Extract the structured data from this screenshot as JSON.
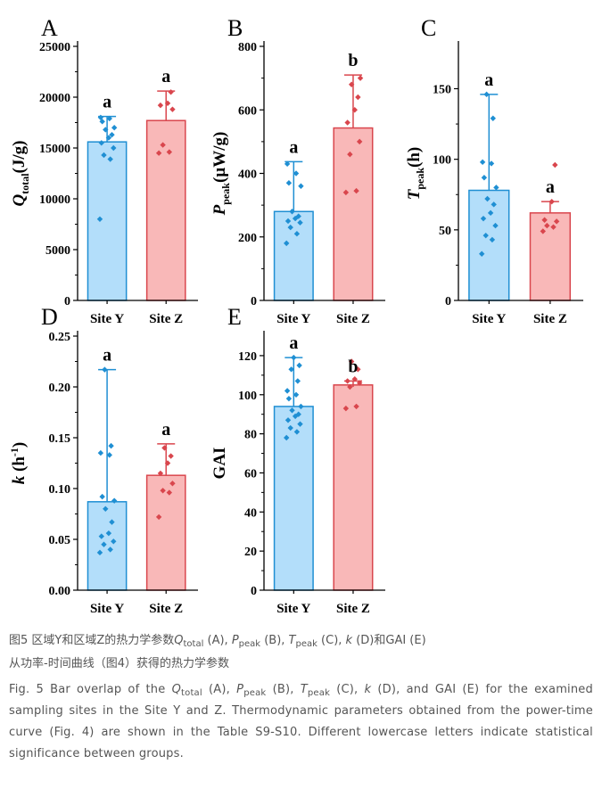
{
  "colors": {
    "site_y_fill": "#b3defa",
    "site_y_stroke": "#1f8fd3",
    "site_z_fill": "#f9b8b8",
    "site_z_stroke": "#d9464d"
  },
  "chart_data": [
    {
      "panel": "A",
      "type": "bar",
      "ylabel": "Q_total (J/g)",
      "ylabel_main": "Q",
      "ylabel_sub": "total",
      "ylabel_unit": "(J/g)",
      "categories": [
        "Site Y",
        "Site Z"
      ],
      "ylim": [
        0,
        25000
      ],
      "yticks": [
        0,
        5000,
        10000,
        15000,
        20000,
        25000
      ],
      "ytick_labels": [
        "0",
        "5000",
        "10000",
        "15000",
        "20000",
        "25000"
      ],
      "values": [
        15600,
        17700
      ],
      "err_high": [
        18100,
        20600
      ],
      "err_low": [
        15600,
        17700
      ],
      "letters": [
        "a",
        "a"
      ],
      "points": [
        [
          8000,
          13900,
          14300,
          15000,
          15500,
          16000,
          16300,
          16800,
          17000,
          17600,
          17900,
          18000
        ],
        [
          14500,
          14600,
          15300,
          18800,
          19200,
          19400,
          20500
        ]
      ]
    },
    {
      "panel": "B",
      "type": "bar",
      "ylabel": "P_peak (µW/g)",
      "ylabel_main": "P",
      "ylabel_sub": "peak",
      "ylabel_unit": "(µW/g)",
      "categories": [
        "Site Y",
        "Site Z"
      ],
      "ylim": [
        0,
        800
      ],
      "yticks": [
        0,
        200,
        400,
        600,
        800
      ],
      "ytick_labels": [
        "0",
        "200",
        "400",
        "600",
        "800"
      ],
      "values": [
        280,
        543
      ],
      "err_high": [
        437,
        710
      ],
      "err_low": [
        280,
        543
      ],
      "letters": [
        "a",
        "b"
      ],
      "points": [
        [
          180,
          210,
          230,
          245,
          250,
          258,
          265,
          280,
          360,
          370,
          400,
          430
        ],
        [
          340,
          345,
          460,
          500,
          560,
          600,
          640,
          680,
          700
        ]
      ]
    },
    {
      "panel": "C",
      "type": "bar",
      "ylabel": "T_peak (h)",
      "ylabel_main": "T",
      "ylabel_sub": "peak",
      "ylabel_unit": "(h)",
      "categories": [
        "Site Y",
        "Site Z"
      ],
      "ylim": [
        0,
        180
      ],
      "yticks": [
        0,
        50,
        100,
        150
      ],
      "ytick_labels": [
        "0",
        "50",
        "100",
        "150"
      ],
      "values": [
        78,
        62
      ],
      "err_high": [
        146,
        70
      ],
      "err_low": [
        78,
        62
      ],
      "letters": [
        "a",
        "a"
      ],
      "points": [
        [
          33,
          43,
          46,
          53,
          58,
          62,
          68,
          72,
          80,
          87,
          97,
          98,
          129,
          146
        ],
        [
          49,
          52,
          53,
          56,
          57,
          70,
          96
        ]
      ]
    },
    {
      "panel": "D",
      "type": "bar",
      "ylabel": "k (h-1)",
      "ylabel_main": "k",
      "ylabel_sub": "",
      "ylabel_sup": "-1",
      "ylabel_unit": "(h",
      "categories": [
        "Site Y",
        "Site Z"
      ],
      "ylim": [
        0,
        0.25
      ],
      "yticks": [
        0,
        0.05,
        0.1,
        0.15,
        0.2,
        0.25
      ],
      "ytick_labels": [
        "0.00",
        "0.05",
        "0.10",
        "0.15",
        "0.20",
        "0.25"
      ],
      "values": [
        0.087,
        0.113
      ],
      "err_high": [
        0.217,
        0.144
      ],
      "err_low": [
        0.087,
        0.113
      ],
      "letters": [
        "a",
        "a"
      ],
      "points": [
        [
          0.037,
          0.04,
          0.045,
          0.048,
          0.053,
          0.056,
          0.067,
          0.08,
          0.088,
          0.092,
          0.133,
          0.135,
          0.142,
          0.217
        ],
        [
          0.072,
          0.096,
          0.098,
          0.105,
          0.115,
          0.125,
          0.132,
          0.14
        ]
      ]
    },
    {
      "panel": "E",
      "type": "bar",
      "ylabel": "GAI",
      "ylabel_main": "GAI",
      "ylabel_sub": "",
      "ylabel_unit": "",
      "categories": [
        "Site Y",
        "Site Z"
      ],
      "ylim": [
        0,
        130
      ],
      "yticks": [
        0,
        20,
        40,
        60,
        80,
        100,
        120
      ],
      "ytick_labels": [
        "0",
        "20",
        "40",
        "60",
        "80",
        "100",
        "120"
      ],
      "values": [
        94,
        105
      ],
      "err_high": [
        119,
        107
      ],
      "err_low": [
        94,
        104
      ],
      "letters": [
        "a",
        "b"
      ],
      "points": [
        [
          78,
          81,
          83,
          85,
          87,
          89,
          90,
          92,
          94,
          98,
          100,
          102,
          107,
          113,
          115,
          119
        ],
        [
          93,
          94,
          104,
          106,
          107,
          108,
          113,
          117
        ]
      ]
    }
  ],
  "caption": {
    "cn_line1_pre": "图5 区域Y和区域Z的热力学参数",
    "q": "Q",
    "q_sub": "total",
    "p": "P",
    "p_sub": "peak",
    "t": "T",
    "t_sub": "peak",
    "k": "k",
    "cn_a": " (A), ",
    "cn_b": " (B), ",
    "cn_c": " (C), ",
    "cn_d": " (D)和GAI (E)",
    "cn_line2": "从功率-时间曲线（图4）获得的热力学参数",
    "en_pre": "Fig. 5 Bar overlap of the ",
    "en_a": " (A), ",
    "en_b": " (B), ",
    "en_c": " (C), ",
    "en_d": " (D), and GAI (E) for the examined sampling sites in the Site Y and Z. Thermodynamic parameters obtained from the power-time curve (Fig. 4) are shown in the Table S9-S10. Different lowercase letters indicate statistical significance between groups."
  }
}
